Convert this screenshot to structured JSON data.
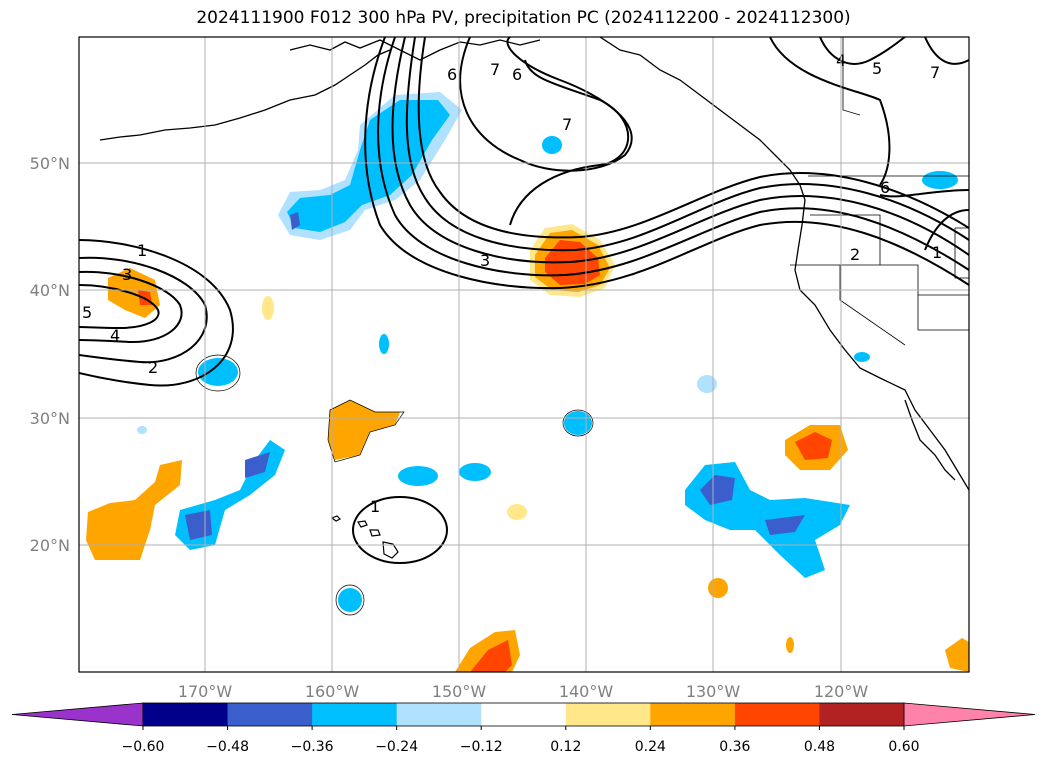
{
  "title": "2024111900 F012 300 hPa PV, precipitation PC (2024112200 - 2024112300)",
  "lon_labels": [
    "170°W",
    "160°W",
    "150°W",
    "140°W",
    "130°W",
    "120°W"
  ],
  "lat_labels": [
    "50°N",
    "40°N",
    "30°N",
    "20°N"
  ],
  "colorbar": {
    "tick_labels": [
      "−0.60",
      "−0.48",
      "−0.36",
      "−0.24",
      "−0.12",
      "0.12",
      "0.24",
      "0.36",
      "0.48",
      "0.60"
    ],
    "colors": {
      "lt_-0.60": "#9933cc",
      "b1": "#00008b",
      "b2": "#3a5fcd",
      "b3": "#00bfff",
      "b4": "#b0e2ff",
      "b5": "#ffffff",
      "b6": "#ffe78a",
      "b7": "#ffa500",
      "b8": "#ff4500",
      "b9": "#b22222",
      "gt_0.60": "#ff82ab"
    }
  },
  "contour_labels": [
    "1",
    "3",
    "5",
    "4",
    "2",
    "3",
    "6",
    "7",
    "6",
    "7",
    "4",
    "5",
    "7",
    "6",
    "1",
    "1",
    "2"
  ]
}
